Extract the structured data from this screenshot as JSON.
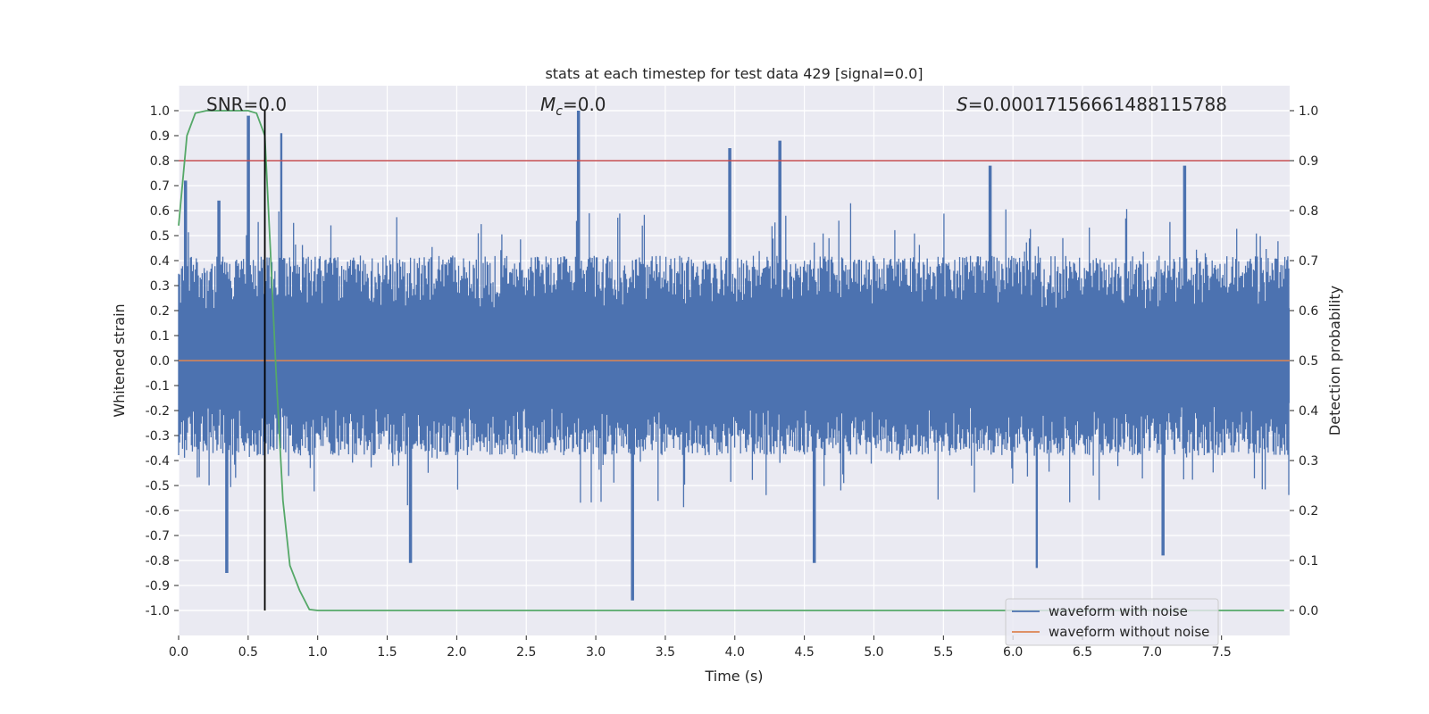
{
  "chart_data": {
    "type": "line",
    "title": "stats at each timestep for test data 429 [signal=0.0]",
    "xlabel": "Time (s)",
    "ylabel_left": "Whitened strain",
    "ylabel_right": "Detection probability",
    "xlim": [
      0.0,
      7.99
    ],
    "ylim_left": [
      -1.1,
      1.1
    ],
    "ylim_right": [
      -0.05,
      1.05
    ],
    "x_ticks": [
      "0.0",
      "0.5",
      "1.0",
      "1.5",
      "2.0",
      "2.5",
      "3.0",
      "3.5",
      "4.0",
      "4.5",
      "5.0",
      "5.5",
      "6.0",
      "6.5",
      "7.0",
      "7.5"
    ],
    "y_ticks_left": [
      "-1.0",
      "-0.9",
      "-0.8",
      "-0.7",
      "-0.6",
      "-0.5",
      "-0.4",
      "-0.3",
      "-0.2",
      "-0.1",
      "0.0",
      "0.1",
      "0.2",
      "0.3",
      "0.4",
      "0.5",
      "0.6",
      "0.7",
      "0.8",
      "0.9",
      "1.0"
    ],
    "y_ticks_right": [
      "0.0",
      "0.1",
      "0.2",
      "0.3",
      "0.4",
      "0.5",
      "0.6",
      "0.7",
      "0.8",
      "0.9",
      "1.0"
    ],
    "grid": true,
    "legend_position": "bottom-right",
    "annotations": {
      "snr": "SNR=0.0",
      "mc_symbol": "M",
      "mc_sub": "c",
      "mc_value": "=0.0",
      "s_symbol": "S",
      "s_value": "=0.00017156661488115788"
    },
    "series": [
      {
        "name": "waveform with noise",
        "axis": "left",
        "color": "#4c72b0",
        "style": "dense noise",
        "typical_range": [
          -0.38,
          0.42
        ],
        "peaks": [
          {
            "x": 0.05,
            "y": 0.72
          },
          {
            "x": 0.29,
            "y": 0.64
          },
          {
            "x": 0.5,
            "y": 0.98
          },
          {
            "x": 0.74,
            "y": 0.91
          },
          {
            "x": 2.88,
            "y": 1.0
          },
          {
            "x": 3.96,
            "y": 0.85
          },
          {
            "x": 4.32,
            "y": 0.88
          },
          {
            "x": 5.84,
            "y": 0.78
          },
          {
            "x": 7.23,
            "y": 0.78
          }
        ],
        "troughs": [
          {
            "x": 0.35,
            "y": -0.85
          },
          {
            "x": 1.67,
            "y": -0.81
          },
          {
            "x": 3.26,
            "y": -0.96
          },
          {
            "x": 4.57,
            "y": -0.81
          },
          {
            "x": 6.17,
            "y": -0.83
          },
          {
            "x": 7.08,
            "y": -0.78
          }
        ]
      },
      {
        "name": "waveform without noise",
        "axis": "left",
        "color": "#dd8452",
        "x": [
          0.0,
          7.99
        ],
        "y": [
          0.0,
          0.0
        ]
      },
      {
        "name": "Detection probability",
        "axis": "right",
        "color": "#55a868",
        "x": [
          0.0,
          0.06,
          0.12,
          0.2,
          0.3,
          0.4,
          0.5,
          0.56,
          0.62,
          0.66,
          0.7,
          0.75,
          0.8,
          0.87,
          0.94,
          1.0,
          2.0,
          4.0,
          6.0,
          7.95
        ],
        "y": [
          0.77,
          0.95,
          0.995,
          1.0,
          1.0,
          1.0,
          1.0,
          0.995,
          0.95,
          0.72,
          0.48,
          0.22,
          0.09,
          0.04,
          0.002,
          0.0,
          0.0,
          0.0,
          0.0,
          0.0
        ]
      }
    ],
    "threshold_line": {
      "axis": "right",
      "value": 0.9,
      "color": "#c44e52"
    },
    "marker_line": {
      "x": 0.62,
      "color": "#000000"
    }
  }
}
